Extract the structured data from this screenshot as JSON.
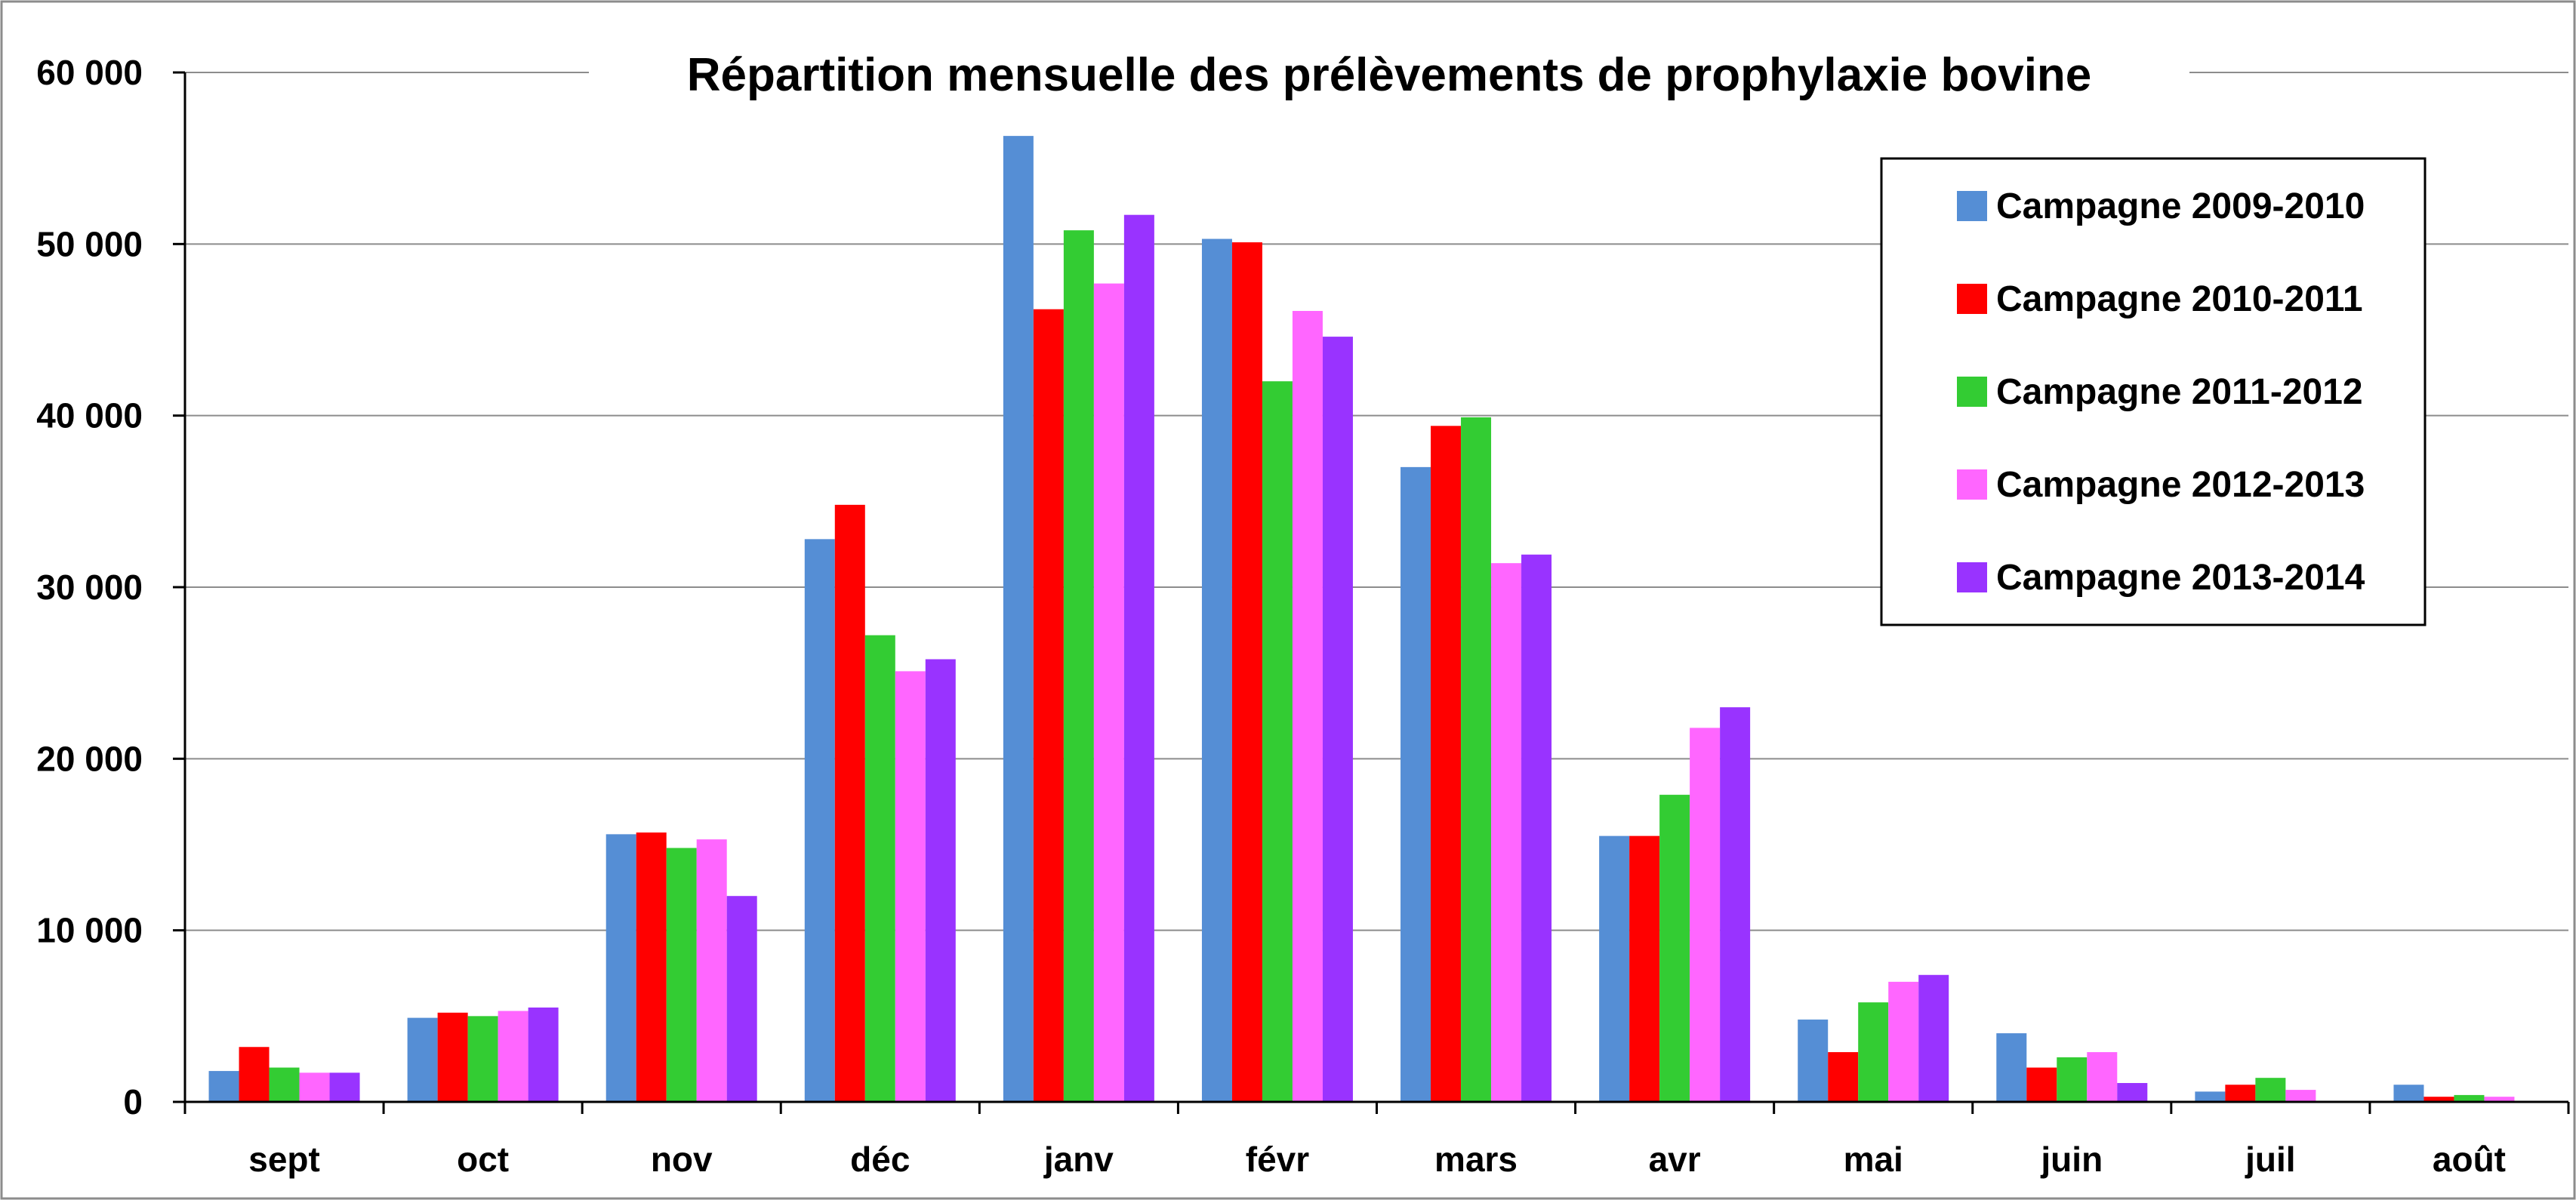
{
  "chart_data": {
    "type": "bar",
    "title": "Répartition mensuelle des prélèvements de prophylaxie bovine",
    "categories": [
      "sept",
      "oct",
      "nov",
      "déc",
      "janv",
      "févr",
      "mars",
      "avr",
      "mai",
      "juin",
      "juil",
      "août"
    ],
    "ylim": [
      0,
      60000
    ],
    "yticks": [
      0,
      10000,
      20000,
      30000,
      40000,
      50000,
      60000
    ],
    "ytick_labels": [
      "0",
      "10 000",
      "20 000",
      "30 000",
      "40 000",
      "50 000",
      "60 000"
    ],
    "grid": true,
    "legend_position": "top-right",
    "series": [
      {
        "name": "Campagne 2009-2010",
        "color": "#558ED5",
        "values": [
          1800,
          4900,
          15600,
          32800,
          56300,
          50300,
          37000,
          15500,
          4800,
          4000,
          600,
          1000
        ]
      },
      {
        "name": "Campagne 2010-2011",
        "color": "#FF0000",
        "values": [
          3200,
          5200,
          15700,
          34800,
          46200,
          50100,
          39400,
          15500,
          2900,
          2000,
          1000,
          300
        ]
      },
      {
        "name": "Campagne 2011-2012",
        "color": "#33CC33",
        "values": [
          2000,
          5000,
          14800,
          27200,
          50800,
          42000,
          39900,
          17900,
          5800,
          2600,
          1400,
          400
        ]
      },
      {
        "name": "Campagne 2012-2013",
        "color": "#FF66FF",
        "values": [
          1700,
          5300,
          15300,
          25100,
          47700,
          46100,
          31400,
          21800,
          7000,
          2900,
          700,
          300
        ]
      },
      {
        "name": "Campagne 2013-2014",
        "color": "#9933FF",
        "values": [
          1700,
          5500,
          12000,
          25800,
          51700,
          44600,
          31900,
          23000,
          7400,
          1100,
          0,
          0
        ]
      }
    ]
  }
}
